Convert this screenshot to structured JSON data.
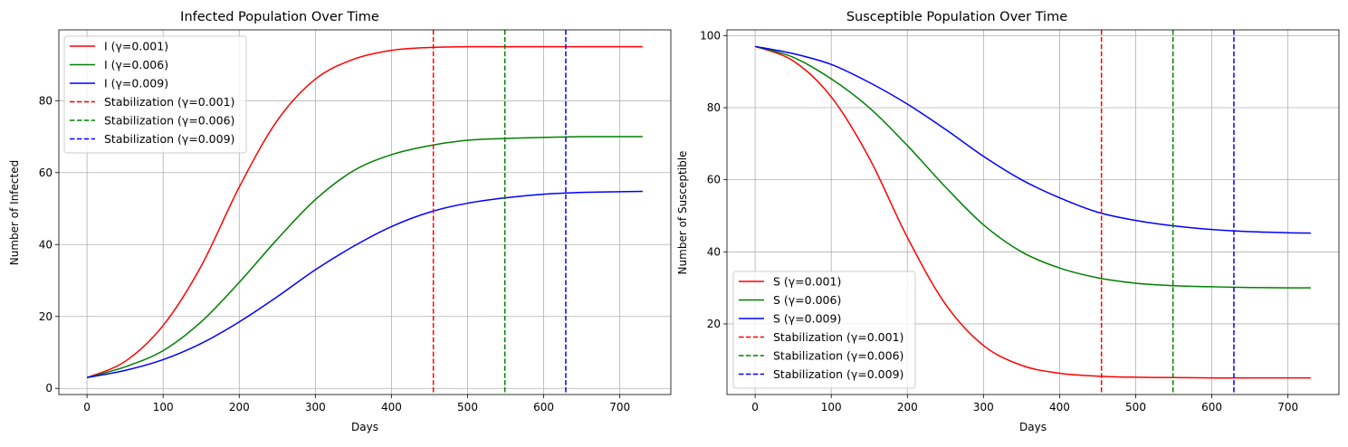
{
  "chart_data": [
    {
      "type": "line",
      "title": "Infected Population Over Time",
      "xlabel": "Days",
      "ylabel": "Number of Infected",
      "xlim": [
        -37,
        767
      ],
      "ylim": [
        -1.7,
        99.7
      ],
      "xticks": [
        0,
        100,
        200,
        300,
        400,
        500,
        600,
        700
      ],
      "yticks": [
        0,
        20,
        40,
        60,
        80
      ],
      "grid": true,
      "legend_position": "top-left",
      "series": [
        {
          "name": "I (γ=0.001)",
          "color": "#ff0000",
          "style": "solid",
          "x": [
            0,
            50,
            100,
            150,
            200,
            250,
            300,
            350,
            400,
            450,
            500,
            550,
            600,
            650,
            700,
            730
          ],
          "y": [
            3,
            7.5,
            17.5,
            34,
            56,
            74.5,
            86,
            91.5,
            94,
            94.8,
            95,
            95,
            95,
            95,
            95,
            95
          ]
        },
        {
          "name": "I (γ=0.006)",
          "color": "#008000",
          "style": "solid",
          "x": [
            0,
            50,
            100,
            150,
            200,
            250,
            300,
            350,
            400,
            450,
            500,
            550,
            600,
            650,
            700,
            730
          ],
          "y": [
            3,
            6,
            10.5,
            18.5,
            29.5,
            41.5,
            52.5,
            60.5,
            65,
            67.5,
            69,
            69.5,
            69.8,
            70,
            70,
            70
          ]
        },
        {
          "name": "I (γ=0.009)",
          "color": "#0000ff",
          "style": "solid",
          "x": [
            0,
            50,
            100,
            150,
            200,
            250,
            300,
            350,
            400,
            450,
            500,
            550,
            600,
            650,
            700,
            730
          ],
          "y": [
            3,
            5,
            8,
            12.5,
            18.5,
            25.5,
            33,
            39.5,
            45,
            49,
            51.5,
            53,
            54,
            54.5,
            54.7,
            54.8
          ]
        }
      ],
      "vlines": [
        {
          "name": "Stabilization (γ=0.001)",
          "x": 455,
          "color": "#ff0000",
          "style": "dashed"
        },
        {
          "name": "Stabilization (γ=0.006)",
          "x": 549,
          "color": "#008000",
          "style": "dashed"
        },
        {
          "name": "Stabilization (γ=0.009)",
          "x": 629,
          "color": "#0000ff",
          "style": "dashed"
        }
      ]
    },
    {
      "type": "line",
      "title": "Susceptible Population Over Time",
      "xlabel": "Days",
      "ylabel": "Number of Susceptible",
      "xlim": [
        -37,
        767
      ],
      "ylim": [
        0.4,
        101.6
      ],
      "xticks": [
        0,
        100,
        200,
        300,
        400,
        500,
        600,
        700
      ],
      "yticks": [
        20,
        40,
        60,
        80,
        100
      ],
      "grid": true,
      "legend_position": "bottom-left",
      "series": [
        {
          "name": "S (γ=0.001)",
          "color": "#ff0000",
          "style": "solid",
          "x": [
            0,
            50,
            100,
            150,
            200,
            250,
            300,
            350,
            400,
            450,
            500,
            550,
            600,
            650,
            700,
            730
          ],
          "y": [
            97,
            93,
            83,
            66,
            44,
            25.5,
            14,
            8.5,
            6.3,
            5.5,
            5.2,
            5.1,
            5,
            5,
            5,
            5
          ]
        },
        {
          "name": "S (γ=0.006)",
          "color": "#008000",
          "style": "solid",
          "x": [
            0,
            50,
            100,
            150,
            200,
            250,
            300,
            350,
            400,
            450,
            500,
            550,
            600,
            650,
            700,
            730
          ],
          "y": [
            97,
            94,
            88,
            80,
            69.5,
            58,
            47.5,
            40,
            35.5,
            32.8,
            31.3,
            30.6,
            30.3,
            30.1,
            30,
            30
          ]
        },
        {
          "name": "S (γ=0.009)",
          "color": "#0000ff",
          "style": "solid",
          "x": [
            0,
            50,
            100,
            150,
            200,
            250,
            300,
            350,
            400,
            450,
            500,
            550,
            600,
            650,
            700,
            730
          ],
          "y": [
            97,
            95,
            92,
            87,
            81,
            74,
            66.5,
            60,
            55,
            51,
            48.7,
            47.2,
            46.2,
            45.6,
            45.3,
            45.2
          ]
        }
      ],
      "vlines": [
        {
          "name": "Stabilization (γ=0.001)",
          "x": 455,
          "color": "#ff0000",
          "style": "dashed"
        },
        {
          "name": "Stabilization (γ=0.006)",
          "x": 549,
          "color": "#008000",
          "style": "dashed"
        },
        {
          "name": "Stabilization (γ=0.009)",
          "x": 629,
          "color": "#0000ff",
          "style": "dashed"
        }
      ]
    }
  ]
}
